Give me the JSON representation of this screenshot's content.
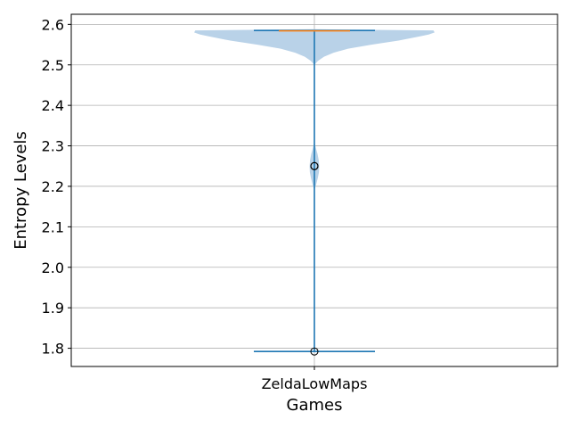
{
  "chart_data": {
    "type": "violin",
    "title": "",
    "xlabel": "Games",
    "ylabel": "Entropy Levels",
    "categories": [
      "ZeldaLowMaps"
    ],
    "ylim": [
      1.755,
      2.625
    ],
    "yticks": [
      "1.8",
      "1.9",
      "2.0",
      "2.1",
      "2.2",
      "2.3",
      "2.4",
      "2.5",
      "2.6"
    ],
    "grid": true,
    "series": [
      {
        "category": "ZeldaLowMaps",
        "min": 1.792,
        "max": 2.585,
        "median": 2.584,
        "outliers": [
          1.792,
          2.25,
          2.25,
          2.25
        ],
        "density": [
          [
            1.79,
            0.0
          ],
          [
            2.19,
            0.0
          ],
          [
            2.205,
            0.015
          ],
          [
            2.22,
            0.028
          ],
          [
            2.235,
            0.038
          ],
          [
            2.25,
            0.04
          ],
          [
            2.265,
            0.036
          ],
          [
            2.28,
            0.026
          ],
          [
            2.295,
            0.012
          ],
          [
            2.31,
            0.0
          ],
          [
            2.5,
            0.0
          ],
          [
            2.51,
            0.03
          ],
          [
            2.52,
            0.08
          ],
          [
            2.53,
            0.16
          ],
          [
            2.54,
            0.28
          ],
          [
            2.55,
            0.48
          ],
          [
            2.56,
            0.7
          ],
          [
            2.57,
            0.87
          ],
          [
            2.575,
            0.95
          ],
          [
            2.58,
            1.0
          ],
          [
            2.585,
            0.99
          ],
          [
            2.588,
            0.0
          ]
        ]
      }
    ],
    "colors": {
      "violin_fill": "#b9d2e8",
      "lines": "#1f77b4",
      "median": "#ff7f0e",
      "grid": "#b0b0b0"
    }
  }
}
